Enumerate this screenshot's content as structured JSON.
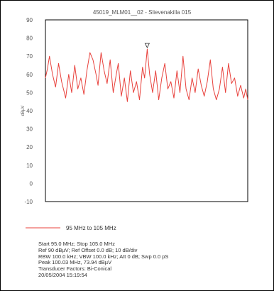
{
  "chart_data": {
    "type": "line",
    "title": "45019_MLM01__02 - Slievenakilla 015",
    "xlabel": "",
    "ylabel": "dBµV",
    "ylim": [
      -10,
      90
    ],
    "yticks": [
      90,
      80,
      70,
      60,
      50,
      40,
      30,
      20,
      10,
      0,
      -10
    ],
    "xlim": [
      95.0,
      105.0
    ],
    "grid": false,
    "legend_position": "bottom-left",
    "series": [
      {
        "name": "95 MHz to 105 MHz",
        "color": "#e8413c",
        "x": [
          95.0,
          95.1,
          95.2,
          95.35,
          95.5,
          95.65,
          95.8,
          96.0,
          96.15,
          96.3,
          96.45,
          96.6,
          96.75,
          96.9,
          97.05,
          97.2,
          97.35,
          97.5,
          97.6,
          97.75,
          97.9,
          98.05,
          98.2,
          98.35,
          98.5,
          98.6,
          98.75,
          98.9,
          99.05,
          99.2,
          99.35,
          99.5,
          99.65,
          99.8,
          99.9,
          100.03,
          100.15,
          100.3,
          100.45,
          100.6,
          100.75,
          100.9,
          101.05,
          101.2,
          101.35,
          101.5,
          101.65,
          101.8,
          101.95,
          102.1,
          102.25,
          102.4,
          102.55,
          102.7,
          102.85,
          103.0,
          103.15,
          103.3,
          103.45,
          103.6,
          103.75,
          103.9,
          104.05,
          104.2,
          104.35,
          104.5,
          104.65,
          104.8,
          104.9,
          105.0
        ],
        "values": [
          58,
          63,
          70,
          60,
          53,
          66,
          56,
          47,
          60,
          50,
          65,
          52,
          58,
          49,
          62,
          72,
          68,
          60,
          54,
          72,
          62,
          55,
          68,
          50,
          60,
          66,
          48,
          58,
          45,
          62,
          50,
          56,
          46,
          64,
          58,
          73.94,
          60,
          50,
          62,
          46,
          58,
          66,
          52,
          56,
          47,
          62,
          50,
          70,
          52,
          46,
          58,
          50,
          63,
          54,
          48,
          56,
          68,
          52,
          46,
          52,
          64,
          50,
          66,
          55,
          58,
          48,
          54,
          47,
          52,
          46
        ]
      }
    ],
    "annotations": [
      "Peak marker at 100.03 MHz"
    ],
    "info_lines": [
      "Start 95.0 MHz; Stop 105.0 MHz",
      "Ref 90 dBµV; Ref Offset 0.0 dB; 10 dB/div",
      "RBW 100.0 kHz; VBW 100.0 kHz; Att 0 dB; Swp 0.0 pS",
      "Peak 100.03 MHz, 73.94 dBµV",
      "Transducer Factors: Bi-Conical",
      "20/05/2004 15:19:54"
    ]
  },
  "colors": {
    "trace": "#e8413c",
    "plot_border": "#000000",
    "axis_text": "#555555"
  }
}
